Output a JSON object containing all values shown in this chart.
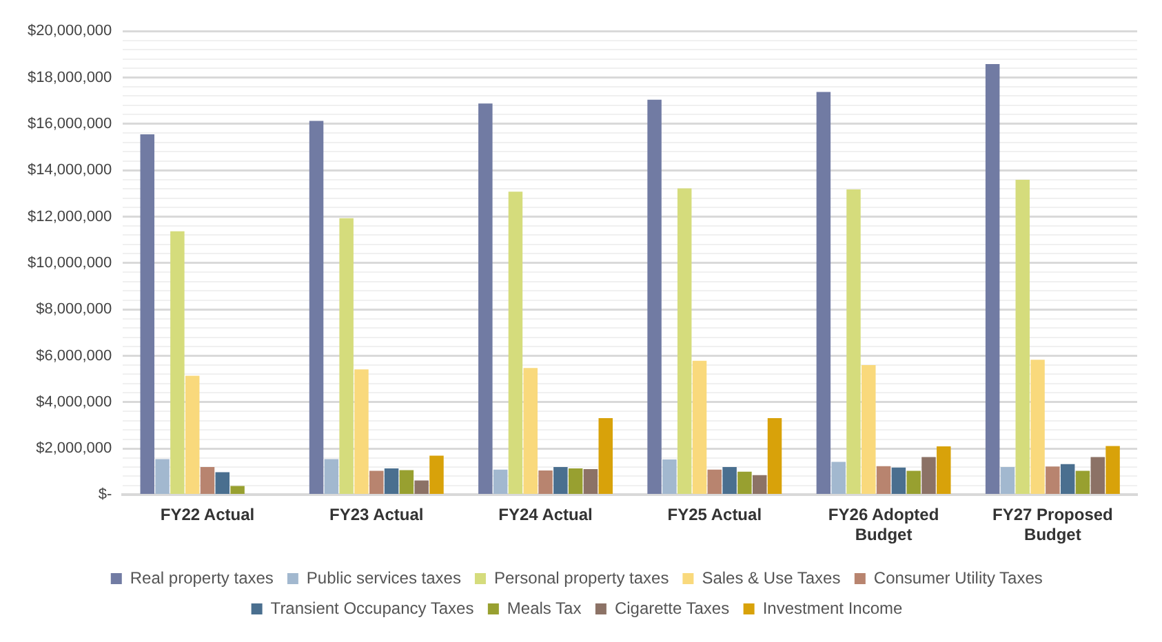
{
  "chart_data": {
    "type": "bar",
    "categories": [
      "FY22 Actual",
      "FY23 Actual",
      "FY24 Actual",
      "FY25 Actual",
      "FY26 Adopted Budget",
      "FY27 Proposed Budget"
    ],
    "series": [
      {
        "name": "Real property taxes",
        "color": "#717ba3",
        "values": [
          15550000,
          16130000,
          16880000,
          17040000,
          17380000,
          18580000
        ]
      },
      {
        "name": "Public services taxes",
        "color": "#a2b8cf",
        "values": [
          1540000,
          1540000,
          1090000,
          1530000,
          1420000,
          1200000
        ]
      },
      {
        "name": "Personal property taxes",
        "color": "#d5dc7c",
        "values": [
          11370000,
          11930000,
          13080000,
          13220000,
          13170000,
          13590000
        ]
      },
      {
        "name": "Sales & Use Taxes",
        "color": "#f9d97c",
        "values": [
          5140000,
          5410000,
          5470000,
          5780000,
          5600000,
          5830000
        ]
      },
      {
        "name": "Consumer Utility Taxes",
        "color": "#b8846f",
        "values": [
          1200000,
          1040000,
          1050000,
          1090000,
          1240000,
          1220000
        ]
      },
      {
        "name": "Transient Occupancy Taxes",
        "color": "#4a6f8f",
        "values": [
          980000,
          1140000,
          1200000,
          1200000,
          1180000,
          1330000
        ]
      },
      {
        "name": "Meals Tax",
        "color": "#98a030",
        "values": [
          380000,
          1070000,
          1140000,
          1000000,
          1040000,
          1040000
        ]
      },
      {
        "name": "Cigarette Taxes",
        "color": "#8c7266",
        "values": [
          null,
          620000,
          1110000,
          850000,
          1630000,
          1630000
        ]
      },
      {
        "name": "Investment Income",
        "color": "#d8a20a",
        "values": [
          null,
          1690000,
          3310000,
          3310000,
          2090000,
          2110000
        ]
      }
    ],
    "ylim": [
      0,
      20000000
    ],
    "yticks": [
      {
        "value": 0,
        "label": "$-"
      },
      {
        "value": 400000,
        "label": null
      },
      {
        "value": 800000,
        "label": null
      },
      {
        "value": 1200000,
        "label": null
      },
      {
        "value": 1600000,
        "label": null
      },
      {
        "value": 2000000,
        "label": "$2,000,000"
      },
      {
        "value": 2400000,
        "label": null
      },
      {
        "value": 2800000,
        "label": null
      },
      {
        "value": 3200000,
        "label": null
      },
      {
        "value": 3600000,
        "label": null
      },
      {
        "value": 4000000,
        "label": "$4,000,000"
      },
      {
        "value": 4400000,
        "label": null
      },
      {
        "value": 4800000,
        "label": null
      },
      {
        "value": 5200000,
        "label": null
      },
      {
        "value": 5600000,
        "label": null
      },
      {
        "value": 6000000,
        "label": "$6,000,000"
      },
      {
        "value": 6400000,
        "label": null
      },
      {
        "value": 6800000,
        "label": null
      },
      {
        "value": 7200000,
        "label": null
      },
      {
        "value": 7600000,
        "label": null
      },
      {
        "value": 8000000,
        "label": "$8,000,000"
      },
      {
        "value": 8400000,
        "label": null
      },
      {
        "value": 8800000,
        "label": null
      },
      {
        "value": 9200000,
        "label": null
      },
      {
        "value": 9600000,
        "label": null
      },
      {
        "value": 10000000,
        "label": "$10,000,000"
      },
      {
        "value": 10400000,
        "label": null
      },
      {
        "value": 10800000,
        "label": null
      },
      {
        "value": 11200000,
        "label": null
      },
      {
        "value": 11600000,
        "label": null
      },
      {
        "value": 12000000,
        "label": "$12,000,000"
      },
      {
        "value": 12400000,
        "label": null
      },
      {
        "value": 12800000,
        "label": null
      },
      {
        "value": 13200000,
        "label": null
      },
      {
        "value": 13600000,
        "label": null
      },
      {
        "value": 14000000,
        "label": "$14,000,000"
      },
      {
        "value": 14400000,
        "label": null
      },
      {
        "value": 14800000,
        "label": null
      },
      {
        "value": 15200000,
        "label": null
      },
      {
        "value": 15600000,
        "label": null
      },
      {
        "value": 16000000,
        "label": "$16,000,000"
      },
      {
        "value": 16400000,
        "label": null
      },
      {
        "value": 16800000,
        "label": null
      },
      {
        "value": 17200000,
        "label": null
      },
      {
        "value": 17600000,
        "label": null
      },
      {
        "value": 18000000,
        "label": "$18,000,000"
      },
      {
        "value": 18400000,
        "label": null
      },
      {
        "value": 18800000,
        "label": null
      },
      {
        "value": 19200000,
        "label": null
      },
      {
        "value": 19600000,
        "label": null
      },
      {
        "value": 20000000,
        "label": "$20,000,000"
      }
    ],
    "grid": "y",
    "legend": "bottom"
  }
}
